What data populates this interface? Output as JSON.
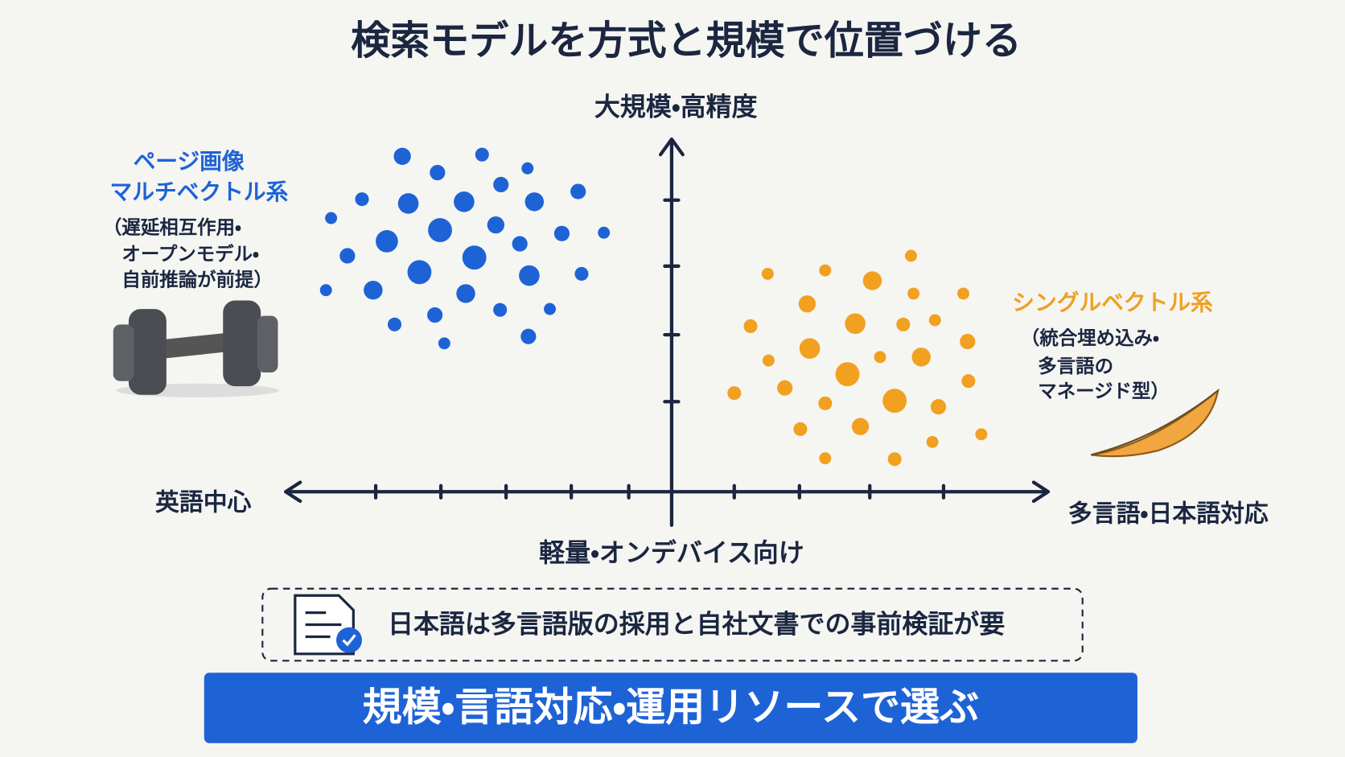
{
  "title": "検索モデルを方式と規模で位置づける",
  "axes": {
    "top": "大規模・高精度",
    "bottom": "軽量・オンデバイス向け",
    "left": "英語中心",
    "right": "多言語・日本語対応"
  },
  "clusters": [
    {
      "name": [
        "ページ画像",
        "マルチベクトル系"
      ],
      "note": [
        "（遅延相互作用・",
        "オープンモデル・",
        "自前推論が前提）"
      ]
    },
    {
      "name": [
        "シングルベクトル系"
      ],
      "note": [
        "（統合埋め込み・",
        "多言語の",
        "マネージド型）"
      ]
    }
  ],
  "note_box": "日本語は多言語版の採用と自社文書での事前検証が要",
  "banner": "規模・言語対応・運用リソースで選ぶ"
}
